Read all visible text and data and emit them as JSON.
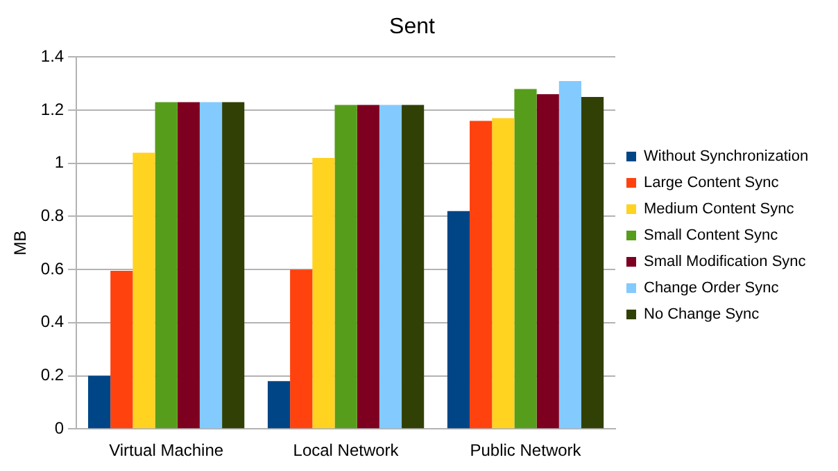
{
  "chart_data": {
    "type": "bar",
    "title": "Sent",
    "ylabel": "MB",
    "categories": [
      "Virtual Machine",
      "Local Network",
      "Public Network"
    ],
    "series": [
      {
        "name": "Without Synchronization",
        "color": "#004586",
        "values": [
          0.2,
          0.18,
          0.82
        ]
      },
      {
        "name": "Large Content Sync",
        "color": "#ff420e",
        "values": [
          0.595,
          0.6,
          1.16
        ]
      },
      {
        "name": "Medium Content Sync",
        "color": "#ffd320",
        "values": [
          1.04,
          1.02,
          1.17
        ]
      },
      {
        "name": "Small Content Sync",
        "color": "#579d1c",
        "values": [
          1.23,
          1.22,
          1.28
        ]
      },
      {
        "name": "Small Modification Sync",
        "color": "#7e0021",
        "values": [
          1.23,
          1.22,
          1.26
        ]
      },
      {
        "name": "Change Order Sync",
        "color": "#83caff",
        "values": [
          1.23,
          1.22,
          1.31
        ]
      },
      {
        "name": "No Change Sync",
        "color": "#314004",
        "values": [
          1.23,
          1.22,
          1.25
        ]
      }
    ],
    "ylim": [
      0,
      1.4
    ],
    "yticks": [
      0,
      0.2,
      0.4,
      0.6,
      0.8,
      1,
      1.2,
      1.4
    ],
    "grid": "y",
    "legend": "right"
  }
}
